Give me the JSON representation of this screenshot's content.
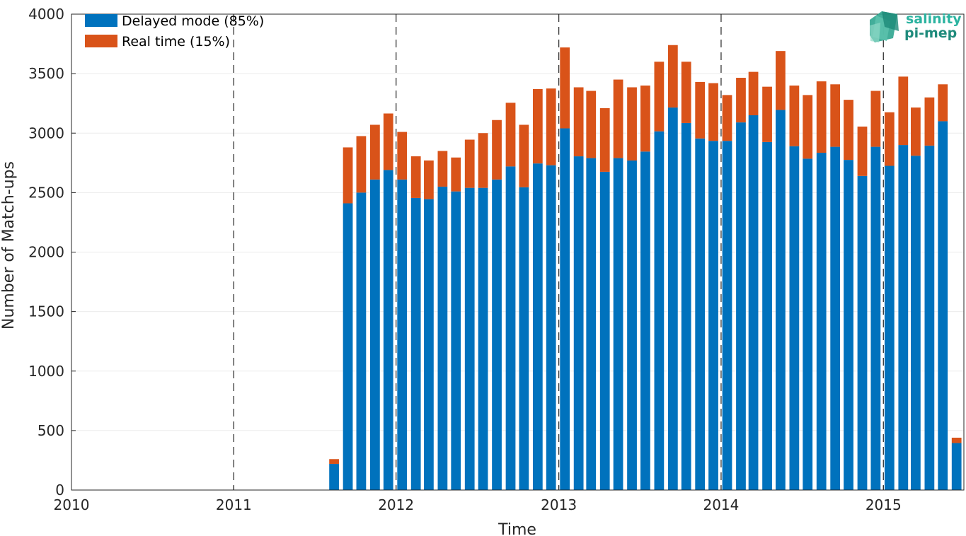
{
  "chart_data": {
    "type": "bar",
    "stacked": true,
    "xlabel": "Time",
    "ylabel": "Number of Match-ups",
    "xlim": [
      "2010-01-01",
      "2015-07-01"
    ],
    "ylim": [
      0,
      4000
    ],
    "yticks": [
      0,
      500,
      1000,
      1500,
      2000,
      2500,
      3000,
      3500,
      4000
    ],
    "xticks": [
      "2010",
      "2011",
      "2012",
      "2013",
      "2014",
      "2015"
    ],
    "grid": true,
    "year_boundaries_dashed": [
      "2011",
      "2012",
      "2013",
      "2014",
      "2015"
    ],
    "legend_position": "top-left",
    "categories": [
      "2011-08",
      "2011-09",
      "2011-10",
      "2011-11",
      "2011-12",
      "2012-01",
      "2012-02",
      "2012-03",
      "2012-04",
      "2012-05",
      "2012-06",
      "2012-07",
      "2012-08",
      "2012-09",
      "2012-10",
      "2012-11",
      "2012-12",
      "2013-01",
      "2013-02",
      "2013-03",
      "2013-04",
      "2013-05",
      "2013-06",
      "2013-07",
      "2013-08",
      "2013-09",
      "2013-10",
      "2013-11",
      "2013-12",
      "2014-01",
      "2014-02",
      "2014-03",
      "2014-04",
      "2014-05",
      "2014-06",
      "2014-07",
      "2014-08",
      "2014-09",
      "2014-10",
      "2014-11",
      "2014-12",
      "2015-01",
      "2015-02",
      "2015-03",
      "2015-04",
      "2015-05",
      "2015-06"
    ],
    "series": [
      {
        "name": "Delayed mode (85%)",
        "color": "#0072bd",
        "values": [
          220,
          2410,
          2500,
          2610,
          2690,
          2610,
          2455,
          2445,
          2550,
          2510,
          2540,
          2540,
          2610,
          2720,
          2545,
          2745,
          2730,
          3040,
          2805,
          2790,
          2675,
          2790,
          2770,
          2845,
          3015,
          3215,
          3085,
          2955,
          2935,
          2935,
          3090,
          3150,
          2925,
          3195,
          2890,
          2785,
          2835,
          2885,
          2775,
          2640,
          2885,
          2725,
          2900,
          2810,
          2895,
          3100,
          395
        ]
      },
      {
        "name": "Real time (15%)",
        "color": "#d95319",
        "values": [
          40,
          470,
          475,
          460,
          475,
          400,
          350,
          325,
          300,
          285,
          405,
          460,
          500,
          535,
          525,
          625,
          645,
          680,
          580,
          565,
          535,
          660,
          615,
          555,
          585,
          525,
          515,
          475,
          485,
          385,
          375,
          365,
          465,
          495,
          510,
          535,
          600,
          525,
          505,
          415,
          470,
          450,
          575,
          405,
          405,
          310,
          45
        ]
      }
    ]
  },
  "logo": {
    "line1": "salinity",
    "line2": "pi-mep"
  }
}
